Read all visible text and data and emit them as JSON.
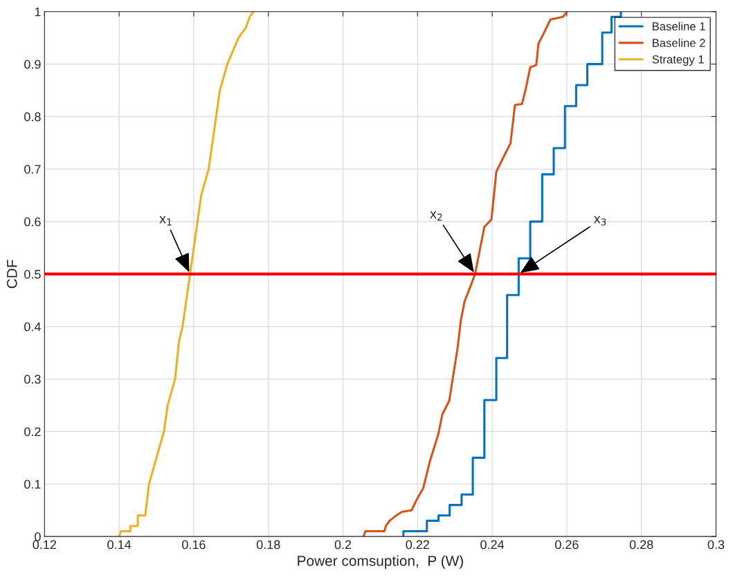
{
  "chart_data": {
    "type": "line",
    "xlabel": "Power comsuption,  P (W)",
    "ylabel": "CDF",
    "xlim": [
      0.12,
      0.3
    ],
    "ylim": [
      0,
      1
    ],
    "xticks": [
      0.12,
      0.14,
      0.16,
      0.18,
      0.2,
      0.22,
      0.24,
      0.26,
      0.28,
      0.3
    ],
    "yticks": [
      0,
      0.1,
      0.2,
      0.3,
      0.4,
      0.5,
      0.6,
      0.7,
      0.8,
      0.9,
      1
    ],
    "grid": true,
    "legend": "top right",
    "series": [
      {
        "name": "Baseline 1",
        "type": "step",
        "color": "#0072bd",
        "x": [
          0.2162,
          0.2162,
          0.2225,
          0.2256,
          0.2286,
          0.2318,
          0.2348,
          0.2379,
          0.2411,
          0.244,
          0.2471,
          0.2502,
          0.2534,
          0.2565,
          0.2595,
          0.2625,
          0.2655,
          0.2695,
          0.272,
          0.2745
        ],
        "values": [
          0,
          0.01,
          0.03,
          0.04,
          0.06,
          0.08,
          0.15,
          0.26,
          0.34,
          0.46,
          0.53,
          0.6,
          0.69,
          0.74,
          0.82,
          0.86,
          0.9,
          0.96,
          0.99,
          1
        ]
      },
      {
        "name": "Baseline 2",
        "color": "#d95319",
        "x": [
          0.2055,
          0.206,
          0.2111,
          0.2115,
          0.2125,
          0.2139,
          0.2158,
          0.2184,
          0.2196,
          0.2215,
          0.2234,
          0.2256,
          0.2266,
          0.2285,
          0.2294,
          0.2307,
          0.2316,
          0.2326,
          0.2341,
          0.2354,
          0.2379,
          0.2398,
          0.2411,
          0.2436,
          0.2449,
          0.2461,
          0.248,
          0.249,
          0.2502,
          0.2518,
          0.2524,
          0.2537,
          0.255,
          0.2556,
          0.259,
          0.26
        ],
        "values": [
          0,
          0.01,
          0.01,
          0.02,
          0.03,
          0.038,
          0.047,
          0.05,
          0.068,
          0.092,
          0.146,
          0.196,
          0.232,
          0.259,
          0.3,
          0.358,
          0.412,
          0.448,
          0.475,
          0.5,
          0.59,
          0.604,
          0.695,
          0.731,
          0.749,
          0.822,
          0.824,
          0.853,
          0.894,
          0.898,
          0.939,
          0.957,
          0.976,
          0.985,
          0.99,
          1
        ]
      },
      {
        "name": "Strategy 1",
        "color": "#edb120",
        "x": [
          0.14,
          0.1405,
          0.143,
          0.143,
          0.145,
          0.145,
          0.147,
          0.148,
          0.15,
          0.152,
          0.153,
          0.155,
          0.156,
          0.157,
          0.158,
          0.159,
          0.16,
          0.161,
          0.162,
          0.164,
          0.165,
          0.166,
          0.167,
          0.169,
          0.172,
          0.174,
          0.175,
          0.176
        ],
        "values": [
          0,
          0.01,
          0.01,
          0.02,
          0.02,
          0.04,
          0.04,
          0.1,
          0.15,
          0.2,
          0.25,
          0.3,
          0.37,
          0.4,
          0.45,
          0.5,
          0.55,
          0.6,
          0.65,
          0.7,
          0.75,
          0.8,
          0.85,
          0.9,
          0.95,
          0.97,
          0.99,
          1
        ]
      }
    ],
    "ref_lines": [
      {
        "axis": "y",
        "value": 0.5,
        "color": "#ff0000",
        "line_style": "solid"
      }
    ],
    "annotations": [
      {
        "text": "x$_{1}$",
        "x": 0.159,
        "y": 0.5
      },
      {
        "text": "x$_{2}$",
        "x": 0.2354,
        "y": 0.5
      },
      {
        "text": "x$_{3}$",
        "x": 0.2471,
        "y": 0.5
      }
    ]
  }
}
